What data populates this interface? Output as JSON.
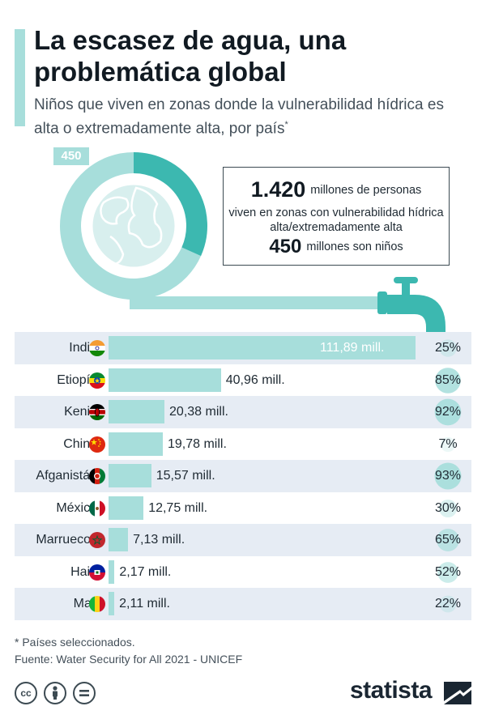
{
  "title": "La escasez de agua, una problemática global",
  "subtitle": "Niños que viven en zonas donde la vulnerabilidad hídrica es alta o extremadamente alta, por país",
  "subtitle_marker": "*",
  "donut": {
    "badge": "450",
    "children_millions": 450,
    "total_millions": 1420,
    "colors": {
      "children": "#3cb8b0",
      "rest": "#a7dedb"
    }
  },
  "info": {
    "total_value": "1.420",
    "total_text": "millones de personas",
    "text2": "viven en zonas con vulnerabilidad hídrica alta/extremadamente alta",
    "children_value": "450",
    "children_text": "millones son niños"
  },
  "chart_data": {
    "type": "bar",
    "orientation": "horizontal",
    "categories": [
      "India",
      "Etiopía",
      "Kenia",
      "China",
      "Afganistán",
      "México",
      "Marruecos",
      "Haití",
      "Mali"
    ],
    "values": [
      111.89,
      40.96,
      20.38,
      19.78,
      15.57,
      12.75,
      7.13,
      2.17,
      2.11
    ],
    "value_labels": [
      "111,89 mill.",
      "40,96 mill.",
      "20,38 mill.",
      "19,78 mill.",
      "15,57 mill.",
      "12,75 mill.",
      "7,13 mill.",
      "2,17 mill.",
      "2,11 mill."
    ],
    "percent_labels": [
      "25%",
      "85%",
      "92%",
      "7%",
      "93%",
      "30%",
      "65%",
      "52%",
      "22%"
    ],
    "percent_values": [
      25,
      85,
      92,
      7,
      93,
      30,
      65,
      52,
      22
    ],
    "flags": [
      "india-flag-icon",
      "ethiopia-flag-icon",
      "kenya-flag-icon",
      "china-flag-icon",
      "afghanistan-flag-icon",
      "mexico-flag-icon",
      "morocco-flag-icon",
      "haiti-flag-icon",
      "mali-flag-icon"
    ],
    "bar_color": "#a7dedb",
    "xlim": [
      0,
      111.89
    ]
  },
  "footnote": "* Países seleccionados.",
  "source": "Fuente: Water Security for All 2021 - UNICEF",
  "license_icons": [
    "cc-icon",
    "by-icon",
    "nd-icon"
  ],
  "logo": "statista"
}
